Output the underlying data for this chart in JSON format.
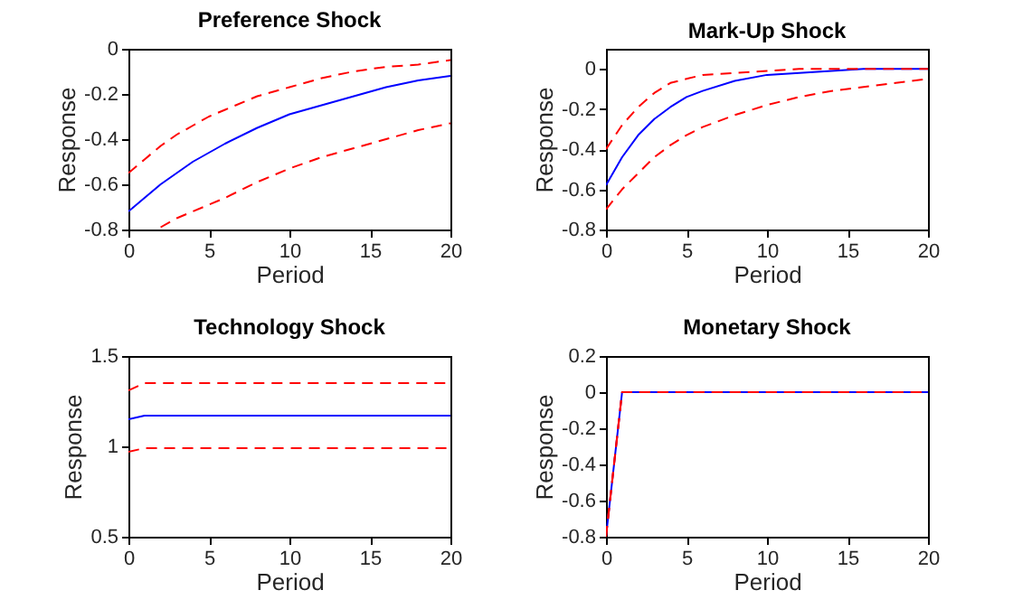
{
  "chart_data": [
    {
      "type": "line",
      "title": "Preference Shock",
      "xlabel": "Period",
      "ylabel": "Response",
      "x": [
        0,
        1,
        2,
        3,
        4,
        5,
        6,
        8,
        10,
        12,
        14,
        16,
        18,
        20
      ],
      "xlim": [
        0,
        20
      ],
      "xticks": [
        0,
        5,
        10,
        15,
        20
      ],
      "ylim": [
        -0.8,
        0
      ],
      "yticks": [
        -0.8,
        -0.6,
        -0.4,
        -0.2,
        0
      ],
      "series": [
        {
          "color": "#0000ff",
          "line_style": "solid",
          "values": [
            -0.72,
            -0.66,
            -0.6,
            -0.55,
            -0.5,
            -0.46,
            -0.42,
            -0.35,
            -0.29,
            -0.25,
            -0.21,
            -0.17,
            -0.14,
            -0.12
          ]
        },
        {
          "color": "#ff0000",
          "line_style": "dashed",
          "values": [
            -0.55,
            -0.49,
            -0.43,
            -0.38,
            -0.34,
            -0.3,
            -0.27,
            -0.21,
            -0.17,
            -0.13,
            -0.1,
            -0.08,
            -0.07,
            -0.05
          ]
        },
        {
          "color": "#ff0000",
          "line_style": "dashed",
          "values": [
            null,
            null,
            -0.79,
            -0.75,
            -0.72,
            -0.69,
            -0.66,
            -0.59,
            -0.53,
            -0.48,
            -0.44,
            -0.4,
            -0.36,
            -0.33
          ]
        }
      ]
    },
    {
      "type": "line",
      "title": "Mark-Up Shock",
      "xlabel": "Period",
      "ylabel": "Response",
      "x": [
        0,
        1,
        2,
        3,
        4,
        5,
        6,
        8,
        10,
        12,
        14,
        16,
        18,
        20
      ],
      "xlim": [
        0,
        20
      ],
      "xticks": [
        0,
        5,
        10,
        15,
        20
      ],
      "ylim": [
        -0.8,
        0.1
      ],
      "yticks": [
        -0.8,
        -0.6,
        -0.4,
        -0.2,
        0
      ],
      "series": [
        {
          "color": "#0000ff",
          "line_style": "solid",
          "values": [
            -0.58,
            -0.44,
            -0.33,
            -0.25,
            -0.19,
            -0.14,
            -0.11,
            -0.06,
            -0.03,
            -0.02,
            -0.01,
            0,
            0,
            0
          ]
        },
        {
          "color": "#ff0000",
          "line_style": "dashed",
          "values": [
            -0.4,
            -0.28,
            -0.19,
            -0.12,
            -0.07,
            -0.05,
            -0.03,
            -0.02,
            -0.01,
            0,
            0,
            0,
            0,
            0
          ]
        },
        {
          "color": "#ff0000",
          "line_style": "dashed",
          "values": [
            -0.7,
            -0.6,
            -0.52,
            -0.44,
            -0.38,
            -0.33,
            -0.29,
            -0.23,
            -0.18,
            -0.14,
            -0.11,
            -0.09,
            -0.07,
            -0.05
          ]
        }
      ]
    },
    {
      "type": "line",
      "title": "Technology Shock",
      "xlabel": "Period",
      "ylabel": "Response",
      "x": [
        0,
        1,
        2,
        20
      ],
      "xlim": [
        0,
        20
      ],
      "xticks": [
        0,
        5,
        10,
        15,
        20
      ],
      "ylim": [
        0.5,
        1.5
      ],
      "yticks": [
        0.5,
        1,
        1.5
      ],
      "series": [
        {
          "color": "#0000ff",
          "line_style": "solid",
          "values": [
            1.15,
            1.17,
            1.17,
            1.17
          ]
        },
        {
          "color": "#ff0000",
          "line_style": "dashed",
          "values": [
            1.31,
            1.35,
            1.35,
            1.35
          ]
        },
        {
          "color": "#ff0000",
          "line_style": "dashed",
          "values": [
            0.97,
            0.99,
            0.99,
            0.99
          ]
        }
      ]
    },
    {
      "type": "line",
      "title": "Monetary Shock",
      "xlabel": "Period",
      "ylabel": "Response",
      "x": [
        0,
        1,
        20
      ],
      "xlim": [
        0,
        20
      ],
      "xticks": [
        0,
        5,
        10,
        15,
        20
      ],
      "ylim": [
        -0.8,
        0.2
      ],
      "yticks": [
        -0.8,
        -0.6,
        -0.4,
        -0.2,
        0,
        0.2
      ],
      "series": [
        {
          "color": "#0000ff",
          "line_style": "solid",
          "values": [
            -0.8,
            0,
            0
          ]
        },
        {
          "color": "#ff0000",
          "line_style": "dashed",
          "values": [
            -0.8,
            0,
            0
          ]
        },
        {
          "color": "#ff0000",
          "line_style": "dashed",
          "values": [
            -0.8,
            0,
            0
          ]
        }
      ]
    }
  ]
}
